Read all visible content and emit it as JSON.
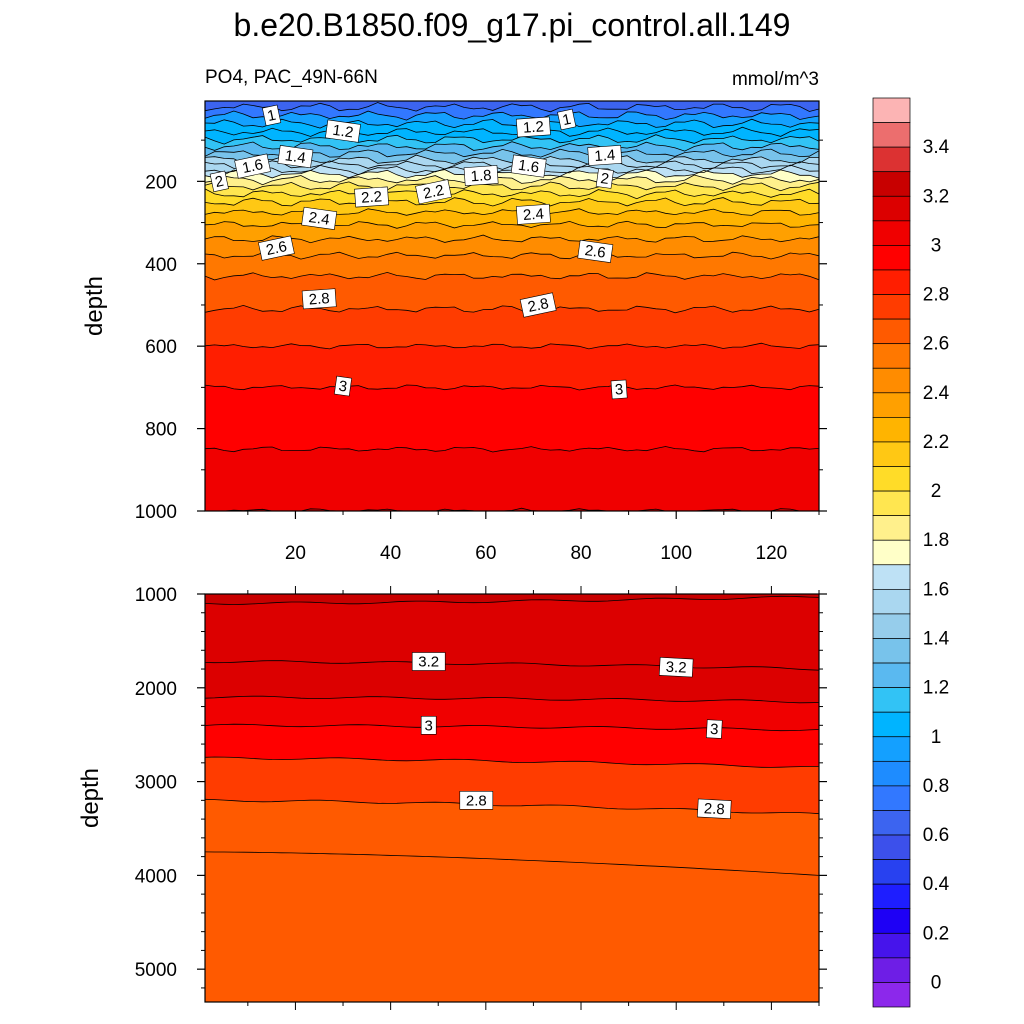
{
  "title": "b.e20.B1850.f09_g17.pi_control.all.149",
  "left_subtitle": "PO4, PAC_49N-66N",
  "right_subtitle": "mmol/m^3",
  "chart_data": [
    {
      "type": "contour",
      "panel": "upper",
      "xlabel": "",
      "ylabel": "depth",
      "xlim": [
        1,
        130
      ],
      "ylim": [
        1000,
        5
      ],
      "y_reversed": true,
      "x_tick_labels": [
        "20",
        "40",
        "60",
        "80",
        "100",
        "120"
      ],
      "x_ticks": [
        20,
        40,
        60,
        80,
        100,
        120
      ],
      "y_tick_labels": [
        "200",
        "400",
        "600",
        "800",
        "1000"
      ],
      "y_ticks": [
        200,
        400,
        600,
        800,
        1000
      ],
      "contour_levels": [
        0.8,
        0.9,
        1.0,
        1.1,
        1.2,
        1.3,
        1.4,
        1.5,
        1.6,
        1.7,
        1.8,
        1.9,
        2.0,
        2.1,
        2.2,
        2.3,
        2.4,
        2.5,
        2.6,
        2.7,
        2.8,
        2.9,
        3.0,
        3.1,
        3.2
      ],
      "contour_depths": [
        20,
        40,
        60,
        80,
        98,
        115,
        132,
        148,
        160,
        172,
        182,
        196,
        212,
        230,
        250,
        275,
        305,
        340,
        380,
        430,
        510,
        600,
        700,
        850,
        1000
      ],
      "contour_labels": [
        {
          "text": "1",
          "x": 15,
          "depth": 40
        },
        {
          "text": "1.2",
          "x": 30,
          "depth": 78
        },
        {
          "text": "1.2",
          "x": 70,
          "depth": 68
        },
        {
          "text": "1",
          "x": 77,
          "depth": 50
        },
        {
          "text": "1.4",
          "x": 20,
          "depth": 140
        },
        {
          "text": "1.4",
          "x": 85,
          "depth": 137
        },
        {
          "text": "1.6",
          "x": 11,
          "depth": 163
        },
        {
          "text": "1.6",
          "x": 69,
          "depth": 163
        },
        {
          "text": "1.8",
          "x": 59,
          "depth": 186
        },
        {
          "text": "2",
          "x": 4,
          "depth": 200
        },
        {
          "text": "2",
          "x": 85,
          "depth": 193
        },
        {
          "text": "2.2",
          "x": 36,
          "depth": 238
        },
        {
          "text": "2.2",
          "x": 49,
          "depth": 225
        },
        {
          "text": "2.4",
          "x": 25,
          "depth": 290
        },
        {
          "text": "2.4",
          "x": 70,
          "depth": 280
        },
        {
          "text": "2.6",
          "x": 16,
          "depth": 362
        },
        {
          "text": "2.6",
          "x": 83,
          "depth": 370
        },
        {
          "text": "2.8",
          "x": 25,
          "depth": 485
        },
        {
          "text": "2.8",
          "x": 71,
          "depth": 500
        },
        {
          "text": "3",
          "x": 30,
          "depth": 697
        },
        {
          "text": "3",
          "x": 88,
          "depth": 705
        }
      ]
    },
    {
      "type": "contour",
      "panel": "lower",
      "xlabel": "",
      "ylabel": "depth",
      "xlim": [
        1,
        130
      ],
      "ylim": [
        5350,
        1000
      ],
      "y_reversed": true,
      "y_tick_labels": [
        "1000",
        "2000",
        "3000",
        "4000",
        "5000"
      ],
      "y_ticks": [
        1000,
        2000,
        3000,
        4000,
        5000
      ],
      "contour_levels": [
        3.3,
        3.2,
        3.1,
        3.0,
        2.9,
        2.8,
        2.7
      ],
      "contour_depths_left": [
        1100,
        1720,
        2100,
        2400,
        2750,
        3200,
        3750
      ],
      "contour_depths_right": [
        1030,
        1800,
        2150,
        2450,
        2850,
        3350,
        4000
      ],
      "contour_labels": [
        {
          "text": "3.2",
          "x": 48,
          "depth": 1720
        },
        {
          "text": "3.2",
          "x": 100,
          "depth": 1780
        },
        {
          "text": "3",
          "x": 48,
          "depth": 2400
        },
        {
          "text": "3",
          "x": 108,
          "depth": 2440
        },
        {
          "text": "2.8",
          "x": 58,
          "depth": 3200
        },
        {
          "text": "2.8",
          "x": 108,
          "depth": 3290
        }
      ]
    }
  ],
  "colorbar": {
    "tick_labels": [
      "3.4",
      "3.2",
      "3",
      "2.8",
      "2.6",
      "2.4",
      "2.2",
      "2",
      "1.8",
      "1.6",
      "1.4",
      "1.2",
      "1",
      "0.8",
      "0.6",
      "0.4",
      "0.2",
      "0"
    ],
    "colors": [
      "#fcb4b4",
      "#ec6e6e",
      "#dc3232",
      "#c80000",
      "#dc0000",
      "#f00000",
      "#ff0000",
      "#ff1e00",
      "#ff3c00",
      "#ff5a00",
      "#ff7800",
      "#ff8c00",
      "#ffa000",
      "#ffb400",
      "#ffc814",
      "#ffdc28",
      "#ffe650",
      "#fff08c",
      "#ffffc8",
      "#bee1f5",
      "#aad7f0",
      "#96cdeb",
      "#78c3eb",
      "#5ab9f0",
      "#32c3f5",
      "#00b4ff",
      "#14a0ff",
      "#1e8cff",
      "#3278ff",
      "#3c64f0",
      "#3c50eb",
      "#2841f0",
      "#1e1eff",
      "#1e00f5",
      "#4614eb",
      "#6e1ee6",
      "#8c28eb"
    ]
  }
}
